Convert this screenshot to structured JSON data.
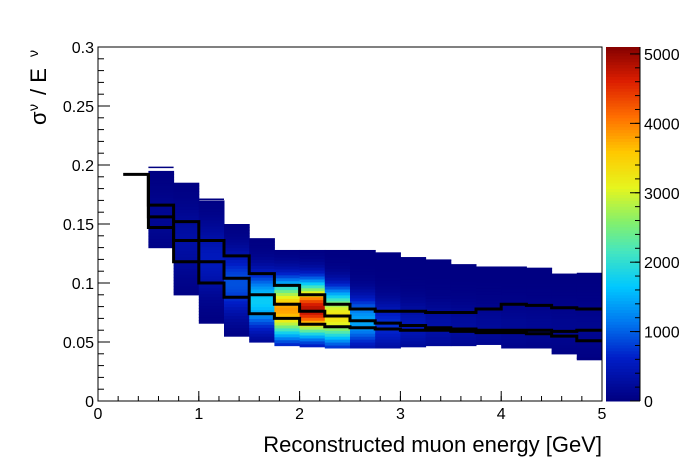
{
  "chart_data": {
    "type": "heatmap",
    "title": "",
    "xlabel": "Reconstructed muon energy [GeV]",
    "ylabel_main": "σ",
    "ylabel_sub": "ν",
    "ylabel_slash": "/ E",
    "ylabel_sub2": "ν",
    "xlim": [
      0,
      5
    ],
    "ylim": [
      0,
      0.3
    ],
    "zlim": [
      0,
      5100
    ],
    "x_ticks": [
      {
        "v": 0,
        "label": "0"
      },
      {
        "v": 1,
        "label": "1"
      },
      {
        "v": 2,
        "label": "2"
      },
      {
        "v": 3,
        "label": "3"
      },
      {
        "v": 4,
        "label": "4"
      },
      {
        "v": 5,
        "label": "5"
      }
    ],
    "y_ticks": [
      {
        "v": 0,
        "label": "0"
      },
      {
        "v": 0.05,
        "label": "0.05"
      },
      {
        "v": 0.1,
        "label": "0.1"
      },
      {
        "v": 0.15,
        "label": "0.15"
      },
      {
        "v": 0.2,
        "label": "0.2"
      },
      {
        "v": 0.25,
        "label": "0.25"
      },
      {
        "v": 0.3,
        "label": "0.3"
      }
    ],
    "z_ticks": [
      {
        "v": 0,
        "label": "0"
      },
      {
        "v": 1000,
        "label": "1000"
      },
      {
        "v": 2000,
        "label": "2000"
      },
      {
        "v": 3000,
        "label": "3000"
      },
      {
        "v": 4000,
        "label": "4000"
      },
      {
        "v": 5000,
        "label": "5000"
      }
    ],
    "bin_width": 0.25,
    "columns": [
      {
        "x0": 0.5,
        "y_lo": 0.13,
        "y_hi": 0.195,
        "peak_y": 0.155,
        "peak_z": 150,
        "sigma": 0.015
      },
      {
        "x0": 0.75,
        "y_lo": 0.09,
        "y_hi": 0.185,
        "peak_y": 0.135,
        "peak_z": 300,
        "sigma": 0.02
      },
      {
        "x0": 1.0,
        "y_lo": 0.066,
        "y_hi": 0.17,
        "peak_y": 0.12,
        "peak_z": 500,
        "sigma": 0.02
      },
      {
        "x0": 1.25,
        "y_lo": 0.055,
        "y_hi": 0.15,
        "peak_y": 0.1,
        "peak_z": 900,
        "sigma": 0.018
      },
      {
        "x0": 1.5,
        "y_lo": 0.05,
        "y_hi": 0.138,
        "peak_y": 0.085,
        "peak_z": 1700,
        "sigma": 0.016
      },
      {
        "x0": 1.75,
        "y_lo": 0.047,
        "y_hi": 0.128,
        "peak_y": 0.078,
        "peak_z": 3800,
        "sigma": 0.016
      },
      {
        "x0": 2.0,
        "y_lo": 0.046,
        "y_hi": 0.128,
        "peak_y": 0.078,
        "peak_z": 4800,
        "sigma": 0.015
      },
      {
        "x0": 2.25,
        "y_lo": 0.045,
        "y_hi": 0.128,
        "peak_y": 0.072,
        "peak_z": 3300,
        "sigma": 0.015
      },
      {
        "x0": 2.5,
        "y_lo": 0.045,
        "y_hi": 0.128,
        "peak_y": 0.068,
        "peak_z": 1400,
        "sigma": 0.014
      },
      {
        "x0": 2.75,
        "y_lo": 0.045,
        "y_hi": 0.126,
        "peak_y": 0.065,
        "peak_z": 700,
        "sigma": 0.014
      },
      {
        "x0": 3.0,
        "y_lo": 0.046,
        "y_hi": 0.122,
        "peak_y": 0.064,
        "peak_z": 450,
        "sigma": 0.014
      },
      {
        "x0": 3.25,
        "y_lo": 0.047,
        "y_hi": 0.12,
        "peak_y": 0.063,
        "peak_z": 320,
        "sigma": 0.014
      },
      {
        "x0": 3.5,
        "y_lo": 0.047,
        "y_hi": 0.116,
        "peak_y": 0.063,
        "peak_z": 250,
        "sigma": 0.014
      },
      {
        "x0": 3.75,
        "y_lo": 0.048,
        "y_hi": 0.114,
        "peak_y": 0.063,
        "peak_z": 200,
        "sigma": 0.014
      },
      {
        "x0": 4.0,
        "y_lo": 0.045,
        "y_hi": 0.114,
        "peak_y": 0.063,
        "peak_z": 170,
        "sigma": 0.014
      },
      {
        "x0": 4.25,
        "y_lo": 0.045,
        "y_hi": 0.113,
        "peak_y": 0.063,
        "peak_z": 150,
        "sigma": 0.014
      },
      {
        "x0": 4.5,
        "y_lo": 0.04,
        "y_hi": 0.108,
        "peak_y": 0.063,
        "peak_z": 130,
        "sigma": 0.014
      },
      {
        "x0": 4.75,
        "y_lo": 0.035,
        "y_hi": 0.108,
        "peak_y": 0.063,
        "peak_z": 120,
        "sigma": 0.014
      }
    ],
    "series": [
      {
        "points": [
          [
            0.25,
            0.192
          ],
          [
            0.5,
            0.192
          ],
          [
            0.5,
            0.166
          ],
          [
            0.75,
            0.166
          ],
          [
            0.75,
            0.152
          ],
          [
            1.0,
            0.152
          ],
          [
            1.0,
            0.136
          ],
          [
            1.25,
            0.136
          ],
          [
            1.25,
            0.123
          ],
          [
            1.5,
            0.123
          ],
          [
            1.5,
            0.108
          ],
          [
            1.75,
            0.108
          ],
          [
            1.75,
            0.098
          ],
          [
            2.0,
            0.098
          ],
          [
            2.0,
            0.09
          ],
          [
            2.25,
            0.09
          ],
          [
            2.25,
            0.082
          ],
          [
            2.5,
            0.082
          ],
          [
            2.5,
            0.078
          ],
          [
            2.75,
            0.078
          ],
          [
            2.75,
            0.076
          ],
          [
            3.25,
            0.076
          ],
          [
            3.25,
            0.075
          ],
          [
            3.75,
            0.075
          ],
          [
            3.75,
            0.078
          ],
          [
            4.0,
            0.078
          ],
          [
            4.0,
            0.082
          ],
          [
            4.25,
            0.082
          ],
          [
            4.25,
            0.081
          ],
          [
            4.5,
            0.081
          ],
          [
            4.5,
            0.079
          ],
          [
            4.75,
            0.079
          ],
          [
            4.75,
            0.078
          ],
          [
            5.0,
            0.078
          ]
        ]
      },
      {
        "points": [
          [
            0.5,
            0.192
          ],
          [
            0.5,
            0.156
          ],
          [
            0.75,
            0.156
          ],
          [
            0.75,
            0.136
          ],
          [
            1.0,
            0.136
          ],
          [
            1.0,
            0.118
          ],
          [
            1.25,
            0.118
          ],
          [
            1.25,
            0.104
          ],
          [
            1.5,
            0.104
          ],
          [
            1.5,
            0.09
          ],
          [
            1.75,
            0.09
          ],
          [
            1.75,
            0.082
          ],
          [
            2.0,
            0.082
          ],
          [
            2.0,
            0.076
          ],
          [
            2.25,
            0.076
          ],
          [
            2.25,
            0.072
          ],
          [
            2.5,
            0.072
          ],
          [
            2.5,
            0.068
          ],
          [
            2.75,
            0.068
          ],
          [
            2.75,
            0.066
          ],
          [
            3.0,
            0.066
          ],
          [
            3.0,
            0.064
          ],
          [
            3.25,
            0.064
          ],
          [
            3.25,
            0.062
          ],
          [
            3.5,
            0.062
          ],
          [
            3.5,
            0.061
          ],
          [
            3.75,
            0.061
          ],
          [
            3.75,
            0.06
          ],
          [
            4.5,
            0.06
          ],
          [
            4.5,
            0.059
          ],
          [
            4.75,
            0.059
          ],
          [
            4.75,
            0.06
          ],
          [
            5.0,
            0.06
          ]
        ]
      },
      {
        "points": [
          [
            0.5,
            0.192
          ],
          [
            0.5,
            0.147
          ],
          [
            0.75,
            0.147
          ],
          [
            0.75,
            0.118
          ],
          [
            1.0,
            0.118
          ],
          [
            1.0,
            0.1
          ],
          [
            1.25,
            0.1
          ],
          [
            1.25,
            0.088
          ],
          [
            1.5,
            0.088
          ],
          [
            1.5,
            0.074
          ],
          [
            1.75,
            0.074
          ],
          [
            1.75,
            0.07
          ],
          [
            2.0,
            0.07
          ],
          [
            2.0,
            0.065
          ],
          [
            2.25,
            0.065
          ],
          [
            2.25,
            0.063
          ],
          [
            2.5,
            0.063
          ],
          [
            2.5,
            0.062
          ],
          [
            2.75,
            0.062
          ],
          [
            2.75,
            0.061
          ],
          [
            3.0,
            0.061
          ],
          [
            3.0,
            0.06
          ],
          [
            3.5,
            0.06
          ],
          [
            3.5,
            0.059
          ],
          [
            3.75,
            0.059
          ],
          [
            3.75,
            0.058
          ],
          [
            4.25,
            0.058
          ],
          [
            4.25,
            0.057
          ],
          [
            4.5,
            0.057
          ],
          [
            4.5,
            0.055
          ],
          [
            4.75,
            0.055
          ],
          [
            4.75,
            0.051
          ],
          [
            5.0,
            0.051
          ]
        ]
      }
    ],
    "stray_marks": [
      [
        0.5,
        0.198
      ],
      [
        1.0,
        0.171
      ],
      [
        4.0,
        0.113
      ],
      [
        4.75,
        0.108
      ],
      [
        4.75,
        0.036
      ]
    ],
    "legend": "none",
    "grid": false
  }
}
